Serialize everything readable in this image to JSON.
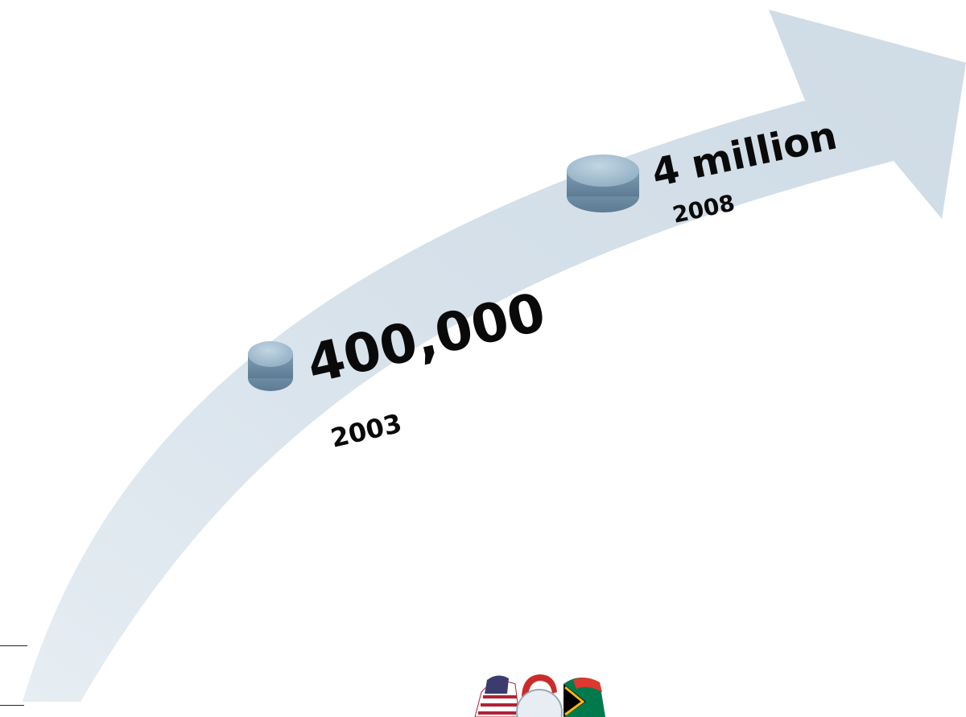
{
  "milestones": [
    {
      "value": "400,000",
      "year": "2003"
    },
    {
      "value": "4 million",
      "year": "2008"
    }
  ],
  "colors": {
    "arrow_fill": "#d8e3ec",
    "pill_top": "#a9c3d6",
    "pill_side": "#6f8fa6",
    "text": "#0a0a0a"
  },
  "logo": {
    "icon": "seal-with-flags-icon",
    "flags": [
      "united-states-flag",
      "south-africa-flag"
    ]
  }
}
